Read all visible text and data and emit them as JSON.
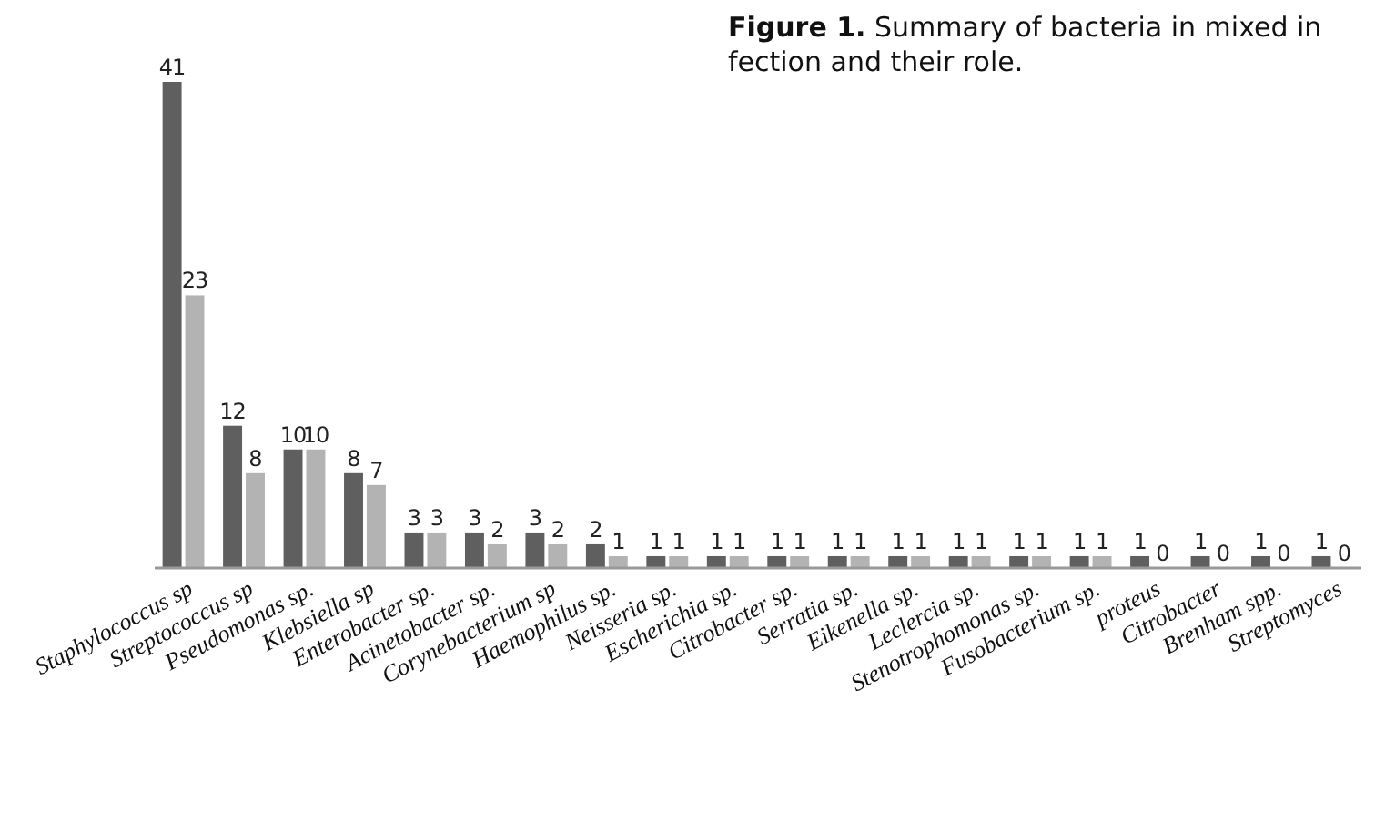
{
  "chart_data": {
    "type": "bar",
    "title": "Figure 1. Summary of bacteria in mixed in fection and their role.",
    "categories": [
      "Staphylococcus sp",
      "Streptococcus sp",
      "Pseudomonas sp.",
      "Klebsiella sp",
      "Enterobacter sp.",
      "Acinetobacter sp.",
      "Corynebacterium sp",
      "Haemophilus sp.",
      "Neisseria sp.",
      "Escherichia sp.",
      "Citrobacter sp.",
      "Serratia sp.",
      "Eikenella sp.",
      "Leclercia sp.",
      "Stenotrophomonas sp.",
      "Fusobacterium sp.",
      "proteus",
      "Citrobacter",
      "Brenham spp.",
      "Streptomyces"
    ],
    "series": [
      {
        "color": "#5f5f5f",
        "values": [
          41,
          12,
          10,
          8,
          3,
          3,
          3,
          2,
          1,
          1,
          1,
          1,
          1,
          1,
          1,
          1,
          1,
          1,
          1,
          1
        ]
      },
      {
        "color": "#b3b3b3",
        "values": [
          23,
          8,
          10,
          7,
          3,
          2,
          2,
          1,
          1,
          1,
          1,
          1,
          1,
          1,
          1,
          1,
          0,
          0,
          0,
          0
        ]
      }
    ],
    "data_labels": true
  }
}
